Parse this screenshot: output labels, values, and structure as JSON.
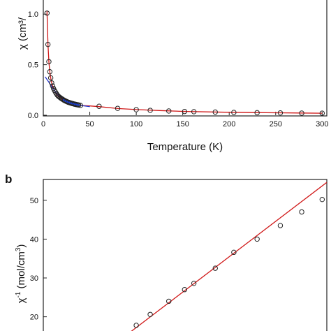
{
  "chart_data": [
    {
      "panel_label": "",
      "type": "scatter",
      "xlabel": "Temperature (K)",
      "ylabel_visible": "χ (cm³/",
      "xlim": [
        0,
        305
      ],
      "ylim": [
        0,
        1.05
      ],
      "xticks": [
        {
          "v": 0,
          "label": "0"
        },
        {
          "v": 50,
          "label": "50"
        },
        {
          "v": 100,
          "label": "100"
        },
        {
          "v": 150,
          "label": "150"
        },
        {
          "v": 200,
          "label": "200"
        },
        {
          "v": 250,
          "label": "250"
        },
        {
          "v": 300,
          "label": "300"
        }
      ],
      "yticks": [
        {
          "v": 0,
          "label": "0.0"
        },
        {
          "v": 0.5,
          "label": "0.5"
        },
        {
          "v": 1.0,
          "label": "1.0"
        }
      ],
      "grid": false,
      "series": [
        {
          "kind": "markers",
          "marker": "open-circle",
          "color": "#222222",
          "x": [
            4,
            5,
            6,
            7,
            8,
            9,
            10,
            11,
            12,
            13,
            14,
            15,
            16,
            17,
            18,
            19,
            20,
            21,
            22,
            23,
            24,
            25,
            26,
            27,
            28,
            29,
            30,
            31,
            32,
            33,
            34,
            35,
            36,
            37,
            38,
            40,
            60,
            80,
            100,
            115,
            135,
            152,
            162,
            185,
            205,
            230,
            255,
            278,
            300
          ],
          "y": [
            1.01,
            0.7,
            0.53,
            0.43,
            0.37,
            0.32,
            0.29,
            0.265,
            0.245,
            0.23,
            0.215,
            0.2,
            0.19,
            0.182,
            0.175,
            0.168,
            0.162,
            0.156,
            0.15,
            0.145,
            0.14,
            0.136,
            0.132,
            0.128,
            0.125,
            0.122,
            0.119,
            0.116,
            0.114,
            0.111,
            0.109,
            0.107,
            0.105,
            0.103,
            0.101,
            0.097,
            0.088,
            0.068,
            0.055,
            0.048,
            0.042,
            0.037,
            0.035,
            0.031,
            0.028,
            0.025,
            0.023,
            0.021,
            0.02
          ]
        },
        {
          "kind": "markers",
          "marker": "dot",
          "color": "#1a3fd0",
          "x": [
            22,
            24,
            26,
            28,
            30,
            32,
            34,
            36,
            38
          ],
          "y": [
            0.15,
            0.14,
            0.132,
            0.125,
            0.119,
            0.114,
            0.109,
            0.105,
            0.101
          ]
        },
        {
          "kind": "line",
          "color": "#d01818",
          "x": [
            4,
            5,
            6,
            7,
            8,
            9,
            10,
            12,
            14,
            16,
            18,
            20,
            25,
            30,
            35,
            40,
            50,
            60,
            80,
            100,
            125,
            150,
            175,
            200,
            225,
            250,
            275,
            300
          ],
          "y": [
            1.03,
            0.7,
            0.53,
            0.43,
            0.37,
            0.32,
            0.29,
            0.245,
            0.215,
            0.19,
            0.175,
            0.162,
            0.136,
            0.119,
            0.107,
            0.097,
            0.092,
            0.085,
            0.066,
            0.056,
            0.046,
            0.038,
            0.033,
            0.029,
            0.026,
            0.024,
            0.022,
            0.02
          ]
        },
        {
          "kind": "line",
          "color": "#2233cc",
          "x": [
            2,
            5,
            10,
            15,
            20,
            25,
            30,
            35,
            40,
            50
          ],
          "y": [
            0.38,
            0.34,
            0.27,
            0.21,
            0.17,
            0.14,
            0.12,
            0.107,
            0.097,
            0.085
          ]
        }
      ]
    },
    {
      "panel_label": "b",
      "type": "scatter",
      "xlabel": "",
      "ylabel": "χ⁻¹ (mol/cm³)",
      "ylabel_base": "χ",
      "ylabel_sup": "-1",
      "ylabel_rest": " (mol/cm",
      "ylabel_sup2": "3",
      "ylabel_end": ")",
      "ylim": [
        14,
        55
      ],
      "xlim": [
        0,
        305
      ],
      "yticks": [
        {
          "v": 20,
          "label": "20"
        },
        {
          "v": 30,
          "label": "30"
        },
        {
          "v": 40,
          "label": "40"
        },
        {
          "v": 50,
          "label": "50"
        }
      ],
      "grid": false,
      "series": [
        {
          "kind": "markers",
          "marker": "open-circle",
          "color": "#222222",
          "x": [
            100,
            115,
            135,
            152,
            162,
            185,
            205,
            230,
            255,
            278,
            300
          ],
          "y": [
            17.8,
            20.6,
            24,
            27,
            28.6,
            32.5,
            36.6,
            40,
            43.5,
            47,
            50.2
          ]
        },
        {
          "kind": "line",
          "color": "#d01818",
          "x": [
            90,
            305
          ],
          "y": [
            15.4,
            54.6
          ]
        }
      ]
    }
  ]
}
